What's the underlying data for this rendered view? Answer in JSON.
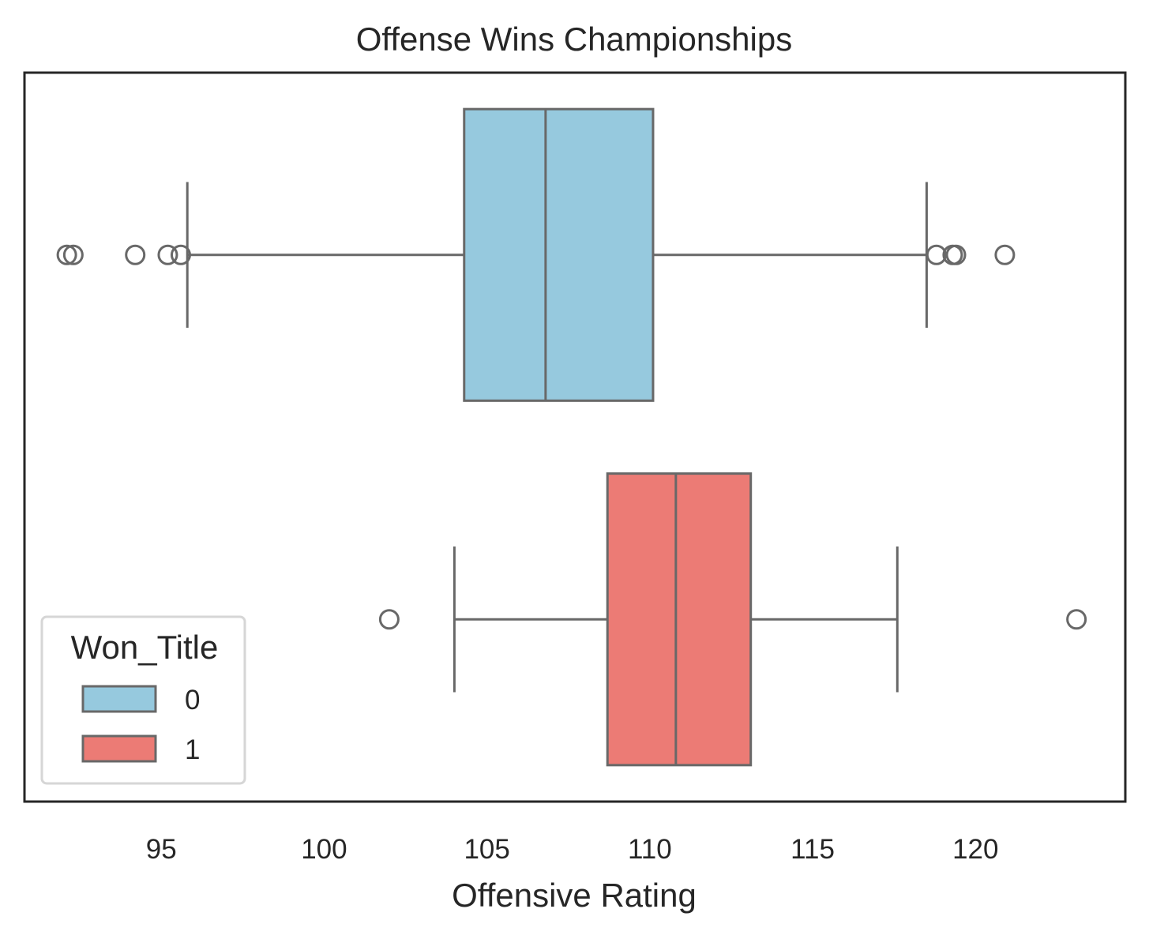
{
  "chart_data": {
    "type": "boxplot",
    "title": "Offense Wins Championships",
    "xlabel": "Offensive Rating",
    "ylabel": "",
    "xlim": [
      90.8,
      124.6
    ],
    "x_ticks": [
      95,
      100,
      105,
      110,
      115,
      120
    ],
    "x_tick_labels": [
      "95",
      "100",
      "105",
      "110",
      "115",
      "120"
    ],
    "grid": false,
    "legend": {
      "title": "Won_Title",
      "placement": "lower-left",
      "entries": [
        {
          "label": "0",
          "color": "#96c9de"
        },
        {
          "label": "1",
          "color": "#ec7b75"
        }
      ]
    },
    "series": [
      {
        "name": "0",
        "color": "#96c9de",
        "whisker_low": 95.8,
        "q1": 104.3,
        "median": 106.8,
        "q3": 110.1,
        "whisker_high": 118.5,
        "outliers": [
          92.1,
          92.3,
          94.2,
          95.2,
          95.6,
          118.8,
          119.3,
          119.4,
          120.9
        ]
      },
      {
        "name": "1",
        "color": "#ec7b75",
        "whisker_low": 104.0,
        "q1": 108.7,
        "median": 110.8,
        "q3": 113.1,
        "whisker_high": 117.6,
        "outliers": [
          102.0,
          123.1
        ]
      }
    ]
  },
  "colors": {
    "box_edge": "#686868",
    "frame": "#262626"
  }
}
